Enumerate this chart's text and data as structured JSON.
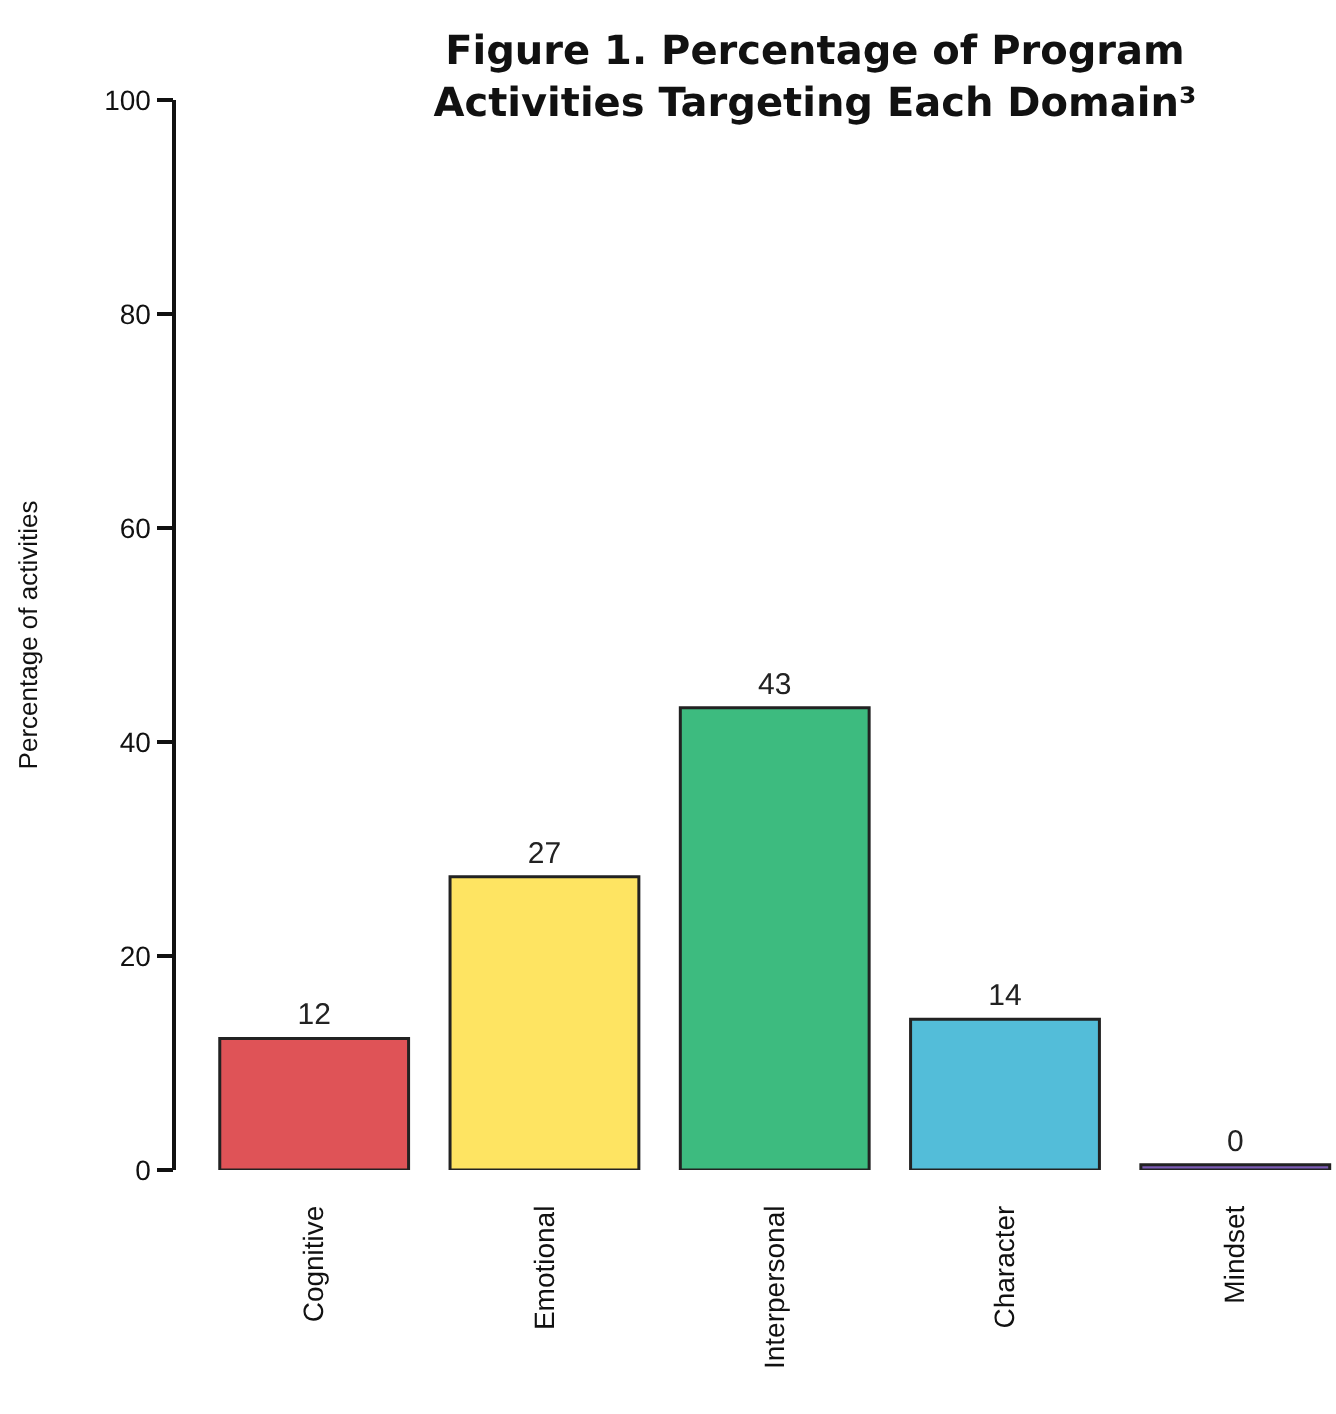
{
  "chart_data": {
    "type": "bar",
    "title": "Figure 1. Percentage of Program Activities Targeting Each Domain³",
    "ylabel": "Percentage of activities",
    "categories": [
      "Cognitive",
      "Emotional",
      "Interpersonal",
      "Character",
      "Mindset"
    ],
    "values": [
      12.3,
      27.4,
      43.2,
      14.1,
      0.5
    ],
    "colors": [
      "#df5357",
      "#fee462",
      "#3dbb7f",
      "#53bdd9",
      "#7b5bb5"
    ],
    "value_labels": [
      "12",
      "27",
      "43",
      "14",
      "0"
    ],
    "ylim": [
      0,
      100
    ],
    "yticks": [
      0,
      20,
      40,
      60,
      80,
      100
    ],
    "grid": false
  }
}
